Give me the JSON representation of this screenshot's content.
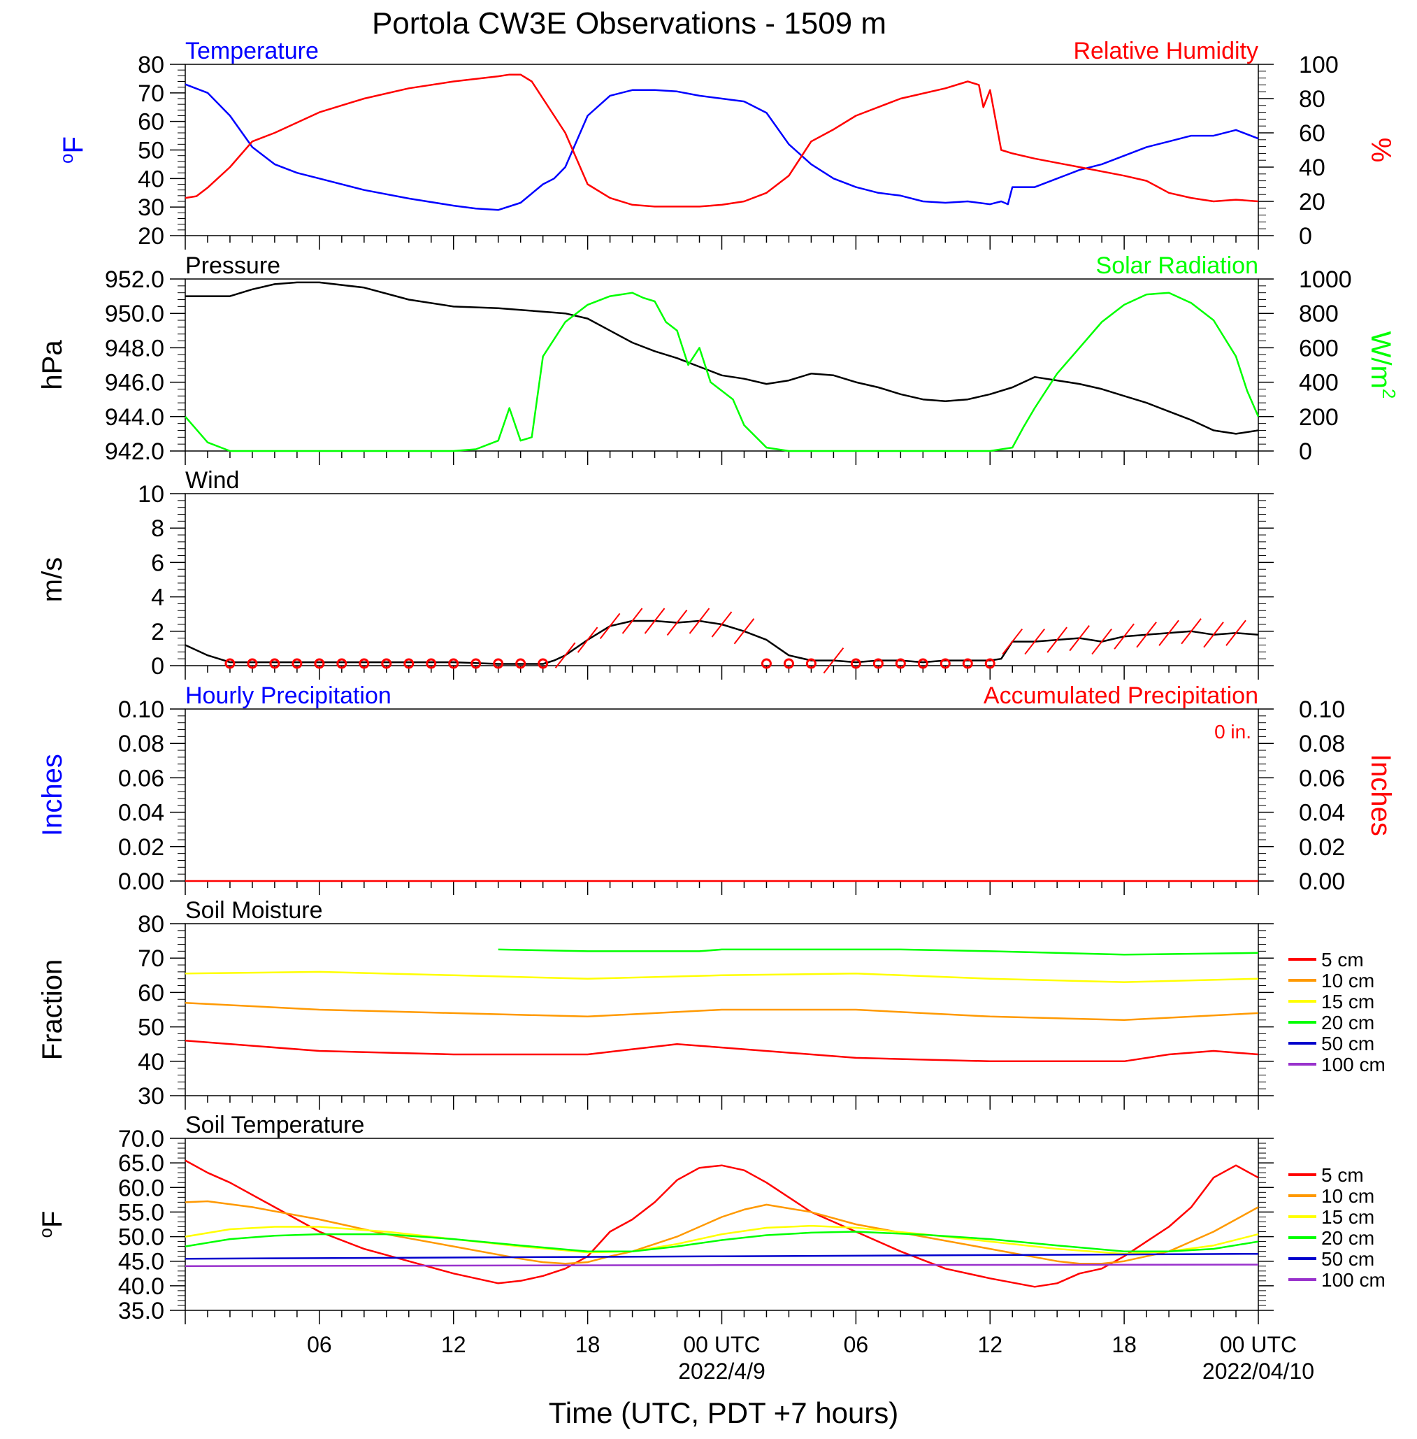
{
  "title": "Portola CW3E Observations - 1509 m",
  "x_axis": {
    "title": "Time (UTC, PDT +7 hours)",
    "ticks": [
      {
        "h": 6,
        "label": "06",
        "date": ""
      },
      {
        "h": 12,
        "label": "12",
        "date": ""
      },
      {
        "h": 18,
        "label": "18",
        "date": ""
      },
      {
        "h": 24,
        "label": "00 UTC",
        "date": "2022/4/9"
      },
      {
        "h": 30,
        "label": "06",
        "date": ""
      },
      {
        "h": 36,
        "label": "12",
        "date": ""
      },
      {
        "h": 42,
        "label": "18",
        "date": ""
      },
      {
        "h": 48,
        "label": "00 UTC",
        "date": "2022/04/10"
      }
    ]
  },
  "colors": {
    "red": "#ff0000",
    "blue": "#0000ff",
    "green": "#00ff00",
    "black": "#000000",
    "orange": "#ff9900",
    "yellow": "#ffff00",
    "darkblue": "#0000cc",
    "purple": "#9932cc"
  },
  "chart_data": [
    {
      "id": "temp_rh",
      "type": "line",
      "left_title": "Temperature",
      "right_title": "Relative Humidity",
      "left_ylabel": "oF",
      "right_ylabel": "%",
      "left_ticks": [
        "80",
        "70",
        "60",
        "50",
        "40",
        "30",
        "20"
      ],
      "right_ticks": [
        "100",
        "80",
        "60",
        "40",
        "20",
        "0"
      ],
      "left_ylim": [
        20,
        80
      ],
      "right_ylim": [
        0,
        100
      ],
      "series": [
        {
          "axis": "left",
          "color": "#0000ff",
          "x": [
            0,
            1,
            2,
            3,
            4,
            5,
            6,
            8,
            10,
            12,
            13,
            14,
            15,
            16,
            16.5,
            17,
            18,
            19,
            20,
            21,
            22,
            23,
            24,
            25,
            26,
            27,
            28,
            29,
            30,
            31,
            32,
            33,
            34,
            35,
            36,
            36.5,
            36.8,
            37,
            38,
            39,
            40,
            41,
            42,
            43,
            44,
            45,
            46,
            47,
            48
          ],
          "y": [
            73,
            70,
            62,
            51,
            45,
            42,
            40,
            36,
            33,
            30.5,
            29.5,
            29,
            31.5,
            38,
            40,
            44,
            62,
            69,
            71,
            71,
            70.5,
            69,
            68,
            67,
            63,
            52,
            45,
            40,
            37,
            35,
            34,
            32,
            31.5,
            32,
            31,
            32,
            31,
            37,
            37,
            40,
            43,
            45,
            48,
            51,
            53,
            55,
            55,
            57,
            54
          ]
        },
        {
          "axis": "right",
          "color": "#ff0000",
          "x": [
            0,
            0.5,
            1,
            2,
            3,
            4,
            6,
            8,
            10,
            12,
            14,
            14.5,
            15,
            15.5,
            16,
            16.5,
            17,
            18,
            19,
            20,
            21,
            22,
            23,
            24,
            25,
            26,
            27,
            28,
            29,
            30,
            32,
            34,
            35,
            35.5,
            35.7,
            36,
            36.5,
            37,
            38,
            40,
            42,
            43,
            44,
            45,
            46,
            47,
            48
          ],
          "y": [
            22,
            23,
            28,
            40,
            55,
            60,
            72,
            80,
            86,
            90,
            93,
            94,
            94,
            90,
            80,
            70,
            60,
            30,
            22,
            18,
            17,
            17,
            17,
            18,
            20,
            25,
            35,
            55,
            62,
            70,
            80,
            86,
            90,
            88,
            75,
            85,
            50,
            48,
            45,
            40,
            35,
            32,
            25,
            22,
            20,
            21,
            20
          ]
        }
      ]
    },
    {
      "id": "pressure_solar",
      "type": "line",
      "left_title": "Pressure",
      "right_title": "Solar Radiation",
      "left_ylabel": "hPa",
      "right_ylabel": "W/m2",
      "left_ticks": [
        "952.0",
        "950.0",
        "948.0",
        "946.0",
        "944.0",
        "942.0"
      ],
      "right_ticks": [
        "1000",
        "800",
        "600",
        "400",
        "200",
        "0"
      ],
      "left_ylim": [
        942,
        952
      ],
      "right_ylim": [
        0,
        1000
      ],
      "series": [
        {
          "axis": "left",
          "color": "#000000",
          "x": [
            0,
            1,
            2,
            3,
            4,
            5,
            6,
            8,
            10,
            12,
            14,
            15,
            16,
            17,
            18,
            19,
            20,
            21,
            22,
            23,
            24,
            25,
            26,
            27,
            28,
            29,
            30,
            31,
            32,
            33,
            34,
            35,
            36,
            37,
            38,
            39,
            40,
            41,
            42,
            43,
            44,
            45,
            46,
            47,
            48
          ],
          "y": [
            951,
            951,
            951,
            951.4,
            951.7,
            951.8,
            951.8,
            951.5,
            950.8,
            950.4,
            950.3,
            950.2,
            950.1,
            950,
            949.7,
            949,
            948.3,
            947.8,
            947.4,
            946.9,
            946.4,
            946.2,
            945.9,
            946.1,
            946.5,
            946.4,
            946,
            945.7,
            945.3,
            945,
            944.9,
            945,
            945.3,
            945.7,
            946.3,
            946.1,
            945.9,
            945.6,
            945.2,
            944.8,
            944.3,
            943.8,
            943.2,
            943,
            943.2
          ]
        },
        {
          "axis": "right",
          "color": "#00ff00",
          "x": [
            0,
            1,
            2,
            4,
            8,
            12,
            13,
            14,
            14.5,
            15,
            15.5,
            16,
            16.5,
            17,
            18,
            19,
            20,
            20.5,
            21,
            21.5,
            22,
            22.5,
            23,
            23.5,
            24,
            24.5,
            25,
            26,
            27,
            30,
            36,
            37,
            37.5,
            38,
            39,
            40,
            41,
            42,
            43,
            44,
            45,
            46,
            47,
            47.5,
            48
          ],
          "y": [
            200,
            50,
            0,
            0,
            0,
            0,
            10,
            60,
            250,
            60,
            80,
            550,
            650,
            750,
            850,
            900,
            920,
            890,
            870,
            750,
            700,
            500,
            600,
            400,
            350,
            300,
            150,
            20,
            0,
            0,
            0,
            20,
            140,
            250,
            450,
            600,
            750,
            850,
            910,
            920,
            860,
            760,
            550,
            350,
            200
          ]
        }
      ]
    },
    {
      "id": "wind",
      "type": "line",
      "left_title": "Wind",
      "left_ylabel": "m/s",
      "left_ticks": [
        "10",
        "8",
        "6",
        "4",
        "2",
        "0"
      ],
      "left_ylim": [
        0,
        10
      ],
      "series": [
        {
          "axis": "left",
          "color": "#000000",
          "x": [
            0,
            1,
            2,
            4,
            6,
            8,
            10,
            12,
            14,
            15,
            16,
            16.5,
            17,
            18,
            19,
            20,
            21,
            22,
            23,
            24,
            25,
            26,
            27,
            28,
            29,
            30,
            31,
            32,
            33,
            34,
            35,
            36,
            36.5,
            37,
            38,
            39,
            40,
            41,
            42,
            43,
            44,
            45,
            46,
            47,
            48
          ],
          "y": [
            1.2,
            0.6,
            0.2,
            0.2,
            0.2,
            0.2,
            0.2,
            0.2,
            0.1,
            0.1,
            0.1,
            0.3,
            0.6,
            1.5,
            2.3,
            2.6,
            2.6,
            2.5,
            2.6,
            2.4,
            2.0,
            1.5,
            0.6,
            0.3,
            0.3,
            0.2,
            0.3,
            0.3,
            0.2,
            0.3,
            0.3,
            0.3,
            0.4,
            1.4,
            1.4,
            1.5,
            1.6,
            1.4,
            1.7,
            1.8,
            1.9,
            2.0,
            1.8,
            1.9,
            1.8
          ]
        }
      ],
      "calm_hours": [
        2,
        3,
        4,
        5,
        6,
        7,
        8,
        9,
        10,
        11,
        12,
        13,
        14,
        15,
        16,
        26,
        27,
        28,
        30,
        31,
        32,
        33,
        34,
        35,
        36
      ],
      "barb_hours": [
        17,
        18,
        19,
        20,
        21,
        22,
        23,
        24,
        25,
        29,
        37,
        38,
        39,
        40,
        41,
        42,
        43,
        44,
        45,
        46,
        47
      ]
    },
    {
      "id": "precip",
      "type": "line",
      "left_title": "Hourly Precipitation",
      "right_title": "Accumulated Precipitation",
      "annotation": "0 in.",
      "left_ylabel": "Inches",
      "right_ylabel": "Inches",
      "left_ticks": [
        "0.10",
        "0.08",
        "0.06",
        "0.04",
        "0.02",
        "0.00"
      ],
      "right_ticks": [
        "0.10",
        "0.08",
        "0.06",
        "0.04",
        "0.02",
        "0.00"
      ],
      "left_ylim": [
        0,
        0.1
      ],
      "right_ylim": [
        0,
        0.1
      ],
      "series": [
        {
          "axis": "left",
          "color": "#ff0000",
          "x": [
            0,
            48
          ],
          "y": [
            0,
            0
          ]
        }
      ]
    },
    {
      "id": "soil_moisture",
      "type": "line",
      "left_title": "Soil Moisture",
      "left_ylabel": "Fraction",
      "left_ticks": [
        "80",
        "70",
        "60",
        "50",
        "40",
        "30"
      ],
      "left_ylim": [
        30,
        80
      ],
      "legend": [
        "5 cm",
        "10 cm",
        "15 cm",
        "20 cm",
        "50 cm",
        "100 cm"
      ],
      "series": [
        {
          "axis": "left",
          "name": "5 cm",
          "color": "#ff0000",
          "x": [
            0,
            6,
            12,
            18,
            22,
            24,
            30,
            36,
            40,
            42,
            44,
            46,
            48
          ],
          "y": [
            46,
            43,
            42,
            42,
            45,
            44,
            41,
            40,
            40,
            40,
            42,
            43,
            42
          ]
        },
        {
          "axis": "left",
          "name": "10 cm",
          "color": "#ff9900",
          "x": [
            0,
            6,
            12,
            18,
            24,
            30,
            36,
            42,
            48
          ],
          "y": [
            57,
            55,
            54,
            53,
            55,
            55,
            53,
            52,
            54
          ]
        },
        {
          "axis": "left",
          "name": "15 cm",
          "color": "#ffff00",
          "x": [
            0,
            6,
            12,
            18,
            24,
            30,
            36,
            42,
            48
          ],
          "y": [
            65.5,
            66,
            65,
            64,
            65,
            65.5,
            64,
            63,
            64
          ]
        },
        {
          "axis": "left",
          "name": "20 cm",
          "color": "#00ff00",
          "x": [
            14,
            18,
            23,
            24,
            32,
            36,
            42,
            48
          ],
          "y": [
            72.5,
            72,
            72,
            72.5,
            72.5,
            72,
            71,
            71.5
          ]
        }
      ]
    },
    {
      "id": "soil_temperature",
      "type": "line",
      "left_title": "Soil Temperature",
      "left_ylabel": "oF",
      "left_ticks": [
        "70.0",
        "65.0",
        "60.0",
        "55.0",
        "50.0",
        "45.0",
        "40.0",
        "35.0"
      ],
      "left_ylim": [
        35,
        70
      ],
      "legend": [
        "5 cm",
        "10 cm",
        "15 cm",
        "20 cm",
        "50 cm",
        "100 cm"
      ],
      "series": [
        {
          "axis": "left",
          "name": "5 cm",
          "color": "#ff0000",
          "x": [
            0,
            1,
            2,
            4,
            6,
            8,
            10,
            12,
            14,
            15,
            16,
            17,
            18,
            19,
            20,
            21,
            22,
            23,
            24,
            25,
            26,
            28,
            30,
            32,
            34,
            36,
            38,
            39,
            40,
            41,
            42,
            43,
            44,
            45,
            46,
            47,
            48
          ],
          "y": [
            65.5,
            63,
            61,
            56,
            51,
            47.5,
            45,
            42.5,
            40.5,
            41,
            42,
            43.5,
            46,
            51,
            53.5,
            57,
            61.5,
            64,
            64.5,
            63.5,
            61,
            55,
            51,
            47,
            43.5,
            41.5,
            39.8,
            40.5,
            42.5,
            43.5,
            46,
            49,
            52,
            56,
            62,
            64.5,
            62
          ]
        },
        {
          "axis": "left",
          "name": "10 cm",
          "color": "#ff9900",
          "x": [
            0,
            1,
            3,
            6,
            9,
            12,
            15,
            16,
            17,
            18,
            19,
            20,
            22,
            24,
            25,
            26,
            28,
            30,
            33,
            36,
            39,
            40,
            41,
            42,
            43,
            44,
            46,
            48
          ],
          "y": [
            57,
            57.2,
            56,
            53.5,
            50.5,
            48,
            45.5,
            44.8,
            44.5,
            44.8,
            46,
            47,
            50,
            54,
            55.5,
            56.5,
            55,
            52.5,
            50,
            47.5,
            45,
            44.5,
            44.5,
            45,
            46,
            47,
            51,
            56
          ]
        },
        {
          "axis": "left",
          "name": "15 cm",
          "color": "#ffff00",
          "x": [
            0,
            2,
            4,
            6,
            9,
            12,
            15,
            18,
            20,
            22,
            24,
            26,
            28,
            30,
            33,
            36,
            39,
            42,
            44,
            46,
            48
          ],
          "y": [
            50,
            51.5,
            52,
            52,
            51,
            49.5,
            48,
            46.8,
            47,
            48.5,
            50.5,
            51.8,
            52.2,
            51.8,
            50.5,
            49,
            47.5,
            46.5,
            47,
            48.2,
            50.5
          ]
        },
        {
          "axis": "left",
          "name": "20 cm",
          "color": "#00ff00",
          "x": [
            0,
            2,
            4,
            6,
            9,
            12,
            15,
            18,
            20,
            22,
            24,
            26,
            28,
            30,
            33,
            36,
            39,
            42,
            44,
            46,
            48
          ],
          "y": [
            48,
            49.5,
            50.2,
            50.5,
            50.5,
            49.5,
            48.2,
            47,
            47,
            48,
            49.3,
            50.3,
            50.8,
            51,
            50.4,
            49.5,
            48.2,
            47,
            47,
            47.5,
            49
          ]
        },
        {
          "axis": "left",
          "name": "50 cm",
          "color": "#0000cc",
          "x": [
            0,
            24,
            48
          ],
          "y": [
            45.5,
            46,
            46.5
          ]
        },
        {
          "axis": "left",
          "name": "100 cm",
          "color": "#9932cc",
          "x": [
            0,
            24,
            48
          ],
          "y": [
            44,
            44.2,
            44.3
          ]
        }
      ]
    }
  ]
}
